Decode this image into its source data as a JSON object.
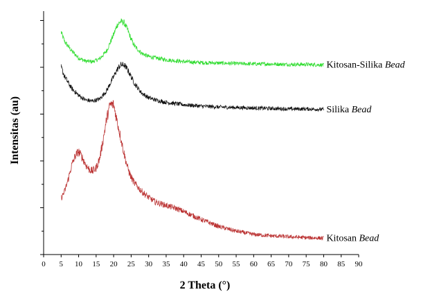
{
  "chart_data": {
    "type": "line",
    "xlabel": "2 Theta (°)",
    "ylabel": "Intensitas (au)",
    "xlim": [
      0,
      90
    ],
    "xticks": [
      0,
      5,
      10,
      15,
      20,
      25,
      30,
      35,
      40,
      45,
      50,
      55,
      60,
      65,
      70,
      75,
      80,
      85,
      90
    ],
    "ylim": [
      0,
      5.2
    ],
    "y_tick_labels_shown": false,
    "grid": false,
    "series": [
      {
        "name_prefix": "Kitosan-Silika ",
        "name_italic": "Bead",
        "color": "#33dd33",
        "x": [
          5,
          6,
          8,
          10,
          12,
          14,
          16,
          18,
          20,
          21,
          22,
          23,
          24,
          25,
          26,
          28,
          30,
          32,
          35,
          40,
          45,
          50,
          55,
          60,
          65,
          70,
          75,
          80
        ],
        "y": [
          4.75,
          4.55,
          4.35,
          4.2,
          4.13,
          4.12,
          4.18,
          4.35,
          4.7,
          4.9,
          4.98,
          4.95,
          4.8,
          4.6,
          4.45,
          4.3,
          4.23,
          4.2,
          4.16,
          4.12,
          4.1,
          4.09,
          4.08,
          4.07,
          4.07,
          4.06,
          4.06,
          4.05
        ]
      },
      {
        "name_prefix": "Silika ",
        "name_italic": "Bead",
        "color": "#111111",
        "x": [
          5,
          6,
          8,
          10,
          12,
          14,
          16,
          18,
          20,
          21,
          22,
          23,
          24,
          25,
          26,
          28,
          30,
          32,
          35,
          40,
          45,
          50,
          55,
          60,
          65,
          70,
          75,
          80
        ],
        "y": [
          4.0,
          3.8,
          3.55,
          3.4,
          3.3,
          3.28,
          3.32,
          3.5,
          3.8,
          3.95,
          4.05,
          4.05,
          3.95,
          3.8,
          3.65,
          3.45,
          3.35,
          3.3,
          3.25,
          3.2,
          3.17,
          3.15,
          3.14,
          3.13,
          3.12,
          3.11,
          3.11,
          3.1
        ]
      },
      {
        "name_prefix": "Kitosan ",
        "name_italic": "Bead",
        "color": "#bb3333",
        "x": [
          5,
          6,
          7,
          8,
          9,
          10,
          11,
          12,
          13,
          14,
          15,
          16,
          17,
          18,
          19,
          20,
          21,
          22,
          23,
          24,
          25,
          26,
          28,
          30,
          32,
          35,
          38,
          40,
          45,
          50,
          55,
          60,
          65,
          70,
          75,
          80
        ],
        "y": [
          1.2,
          1.35,
          1.6,
          1.9,
          2.1,
          2.2,
          2.08,
          1.92,
          1.82,
          1.78,
          1.85,
          2.05,
          2.45,
          2.9,
          3.2,
          3.2,
          2.85,
          2.5,
          2.15,
          1.85,
          1.65,
          1.52,
          1.35,
          1.22,
          1.12,
          1.05,
          0.98,
          0.92,
          0.75,
          0.6,
          0.5,
          0.43,
          0.4,
          0.38,
          0.36,
          0.35
        ]
      }
    ]
  }
}
